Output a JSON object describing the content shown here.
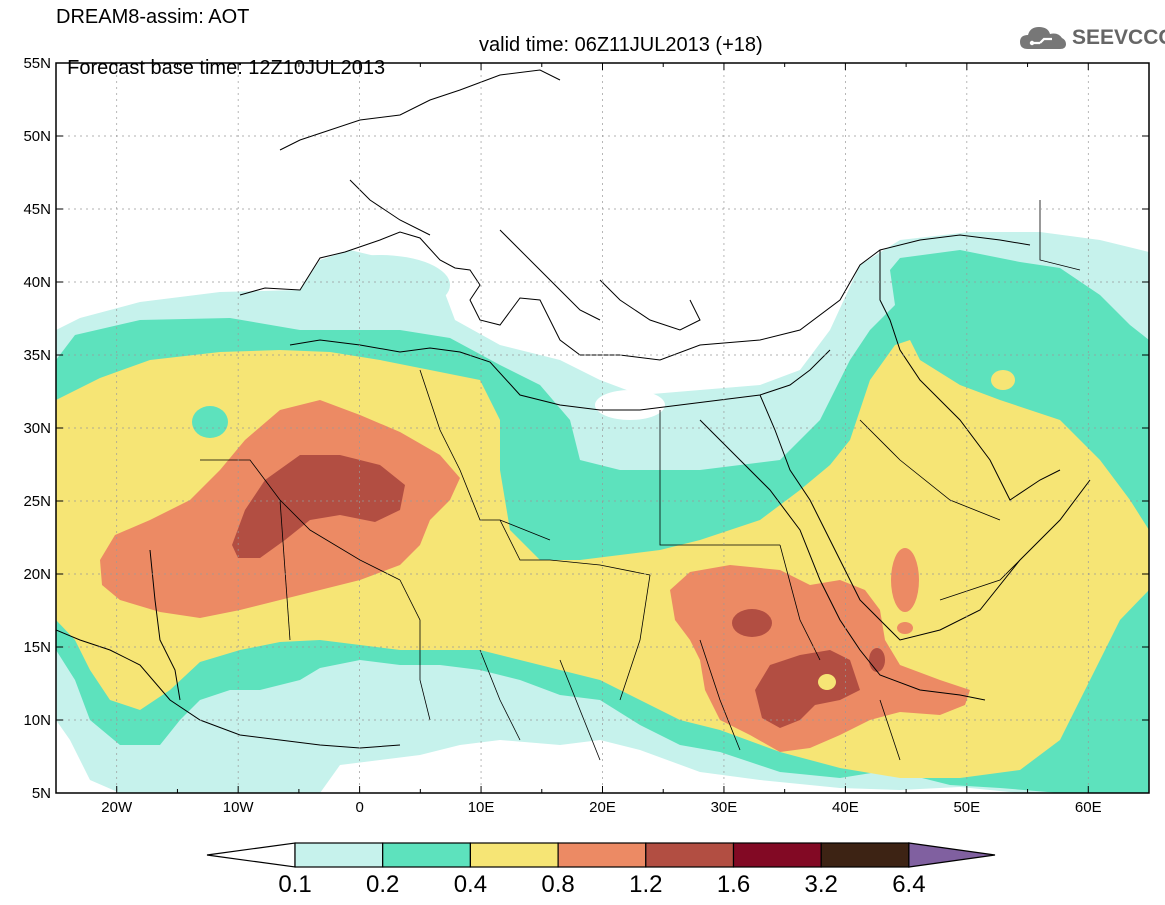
{
  "header": {
    "title_line1": "DREAM8-assim: AOT",
    "title_line2_base": "Forecast base time: 12Z10JUL2013",
    "title_line2_valid": "valid time: 06Z11JUL2013 (+18)"
  },
  "logo": {
    "text": "SEEVCCC",
    "icon": "cloud-logo-icon",
    "color": "#666666"
  },
  "axes": {
    "lat_labels": [
      "55N",
      "50N",
      "45N",
      "40N",
      "35N",
      "30N",
      "25N",
      "20N",
      "15N",
      "10N",
      "5N"
    ],
    "lon_labels": [
      "20W",
      "10W",
      "0",
      "10E",
      "20E",
      "30E",
      "40E",
      "50E",
      "60E"
    ],
    "lat_range": [
      5,
      55
    ],
    "lon_range": [
      -25,
      65
    ]
  },
  "legend": {
    "labels": [
      "0.1",
      "0.2",
      "0.4",
      "0.8",
      "1.2",
      "1.6",
      "3.2",
      "6.4"
    ],
    "colors": [
      "#ffffff",
      "#c6f2ec",
      "#5de2bd",
      "#f6e575",
      "#ec8a64",
      "#b24e42",
      "#820924",
      "#3d2314",
      "#8060a0"
    ]
  },
  "palette": {
    "c1": "#c6f2ec",
    "c2": "#5de2bd",
    "c3": "#f6e575",
    "c4": "#ec8a64",
    "c5": "#b24e42",
    "border": "#000000"
  }
}
